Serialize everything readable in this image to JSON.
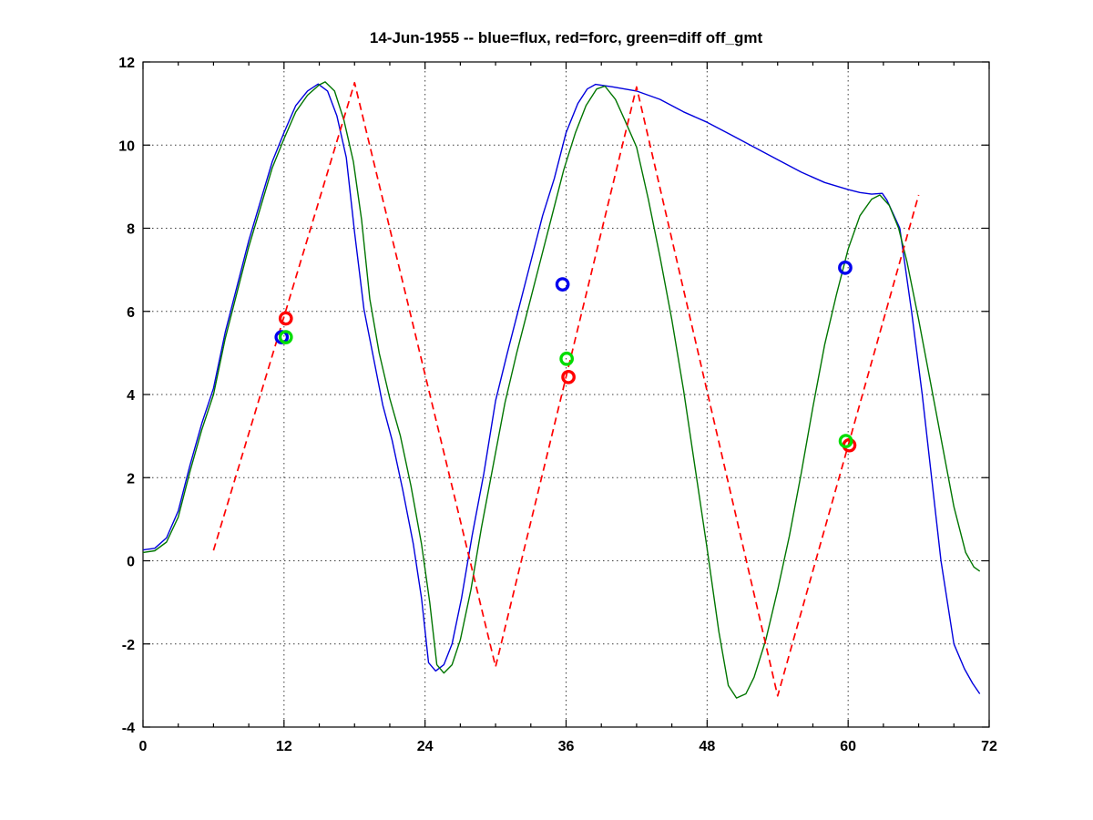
{
  "figure": {
    "background": "#ffffff",
    "frame_color": "#000000",
    "grid_color": "#3c3c3c"
  },
  "chart_data": {
    "type": "line",
    "title": "14-Jun-1955 -- blue=flux, red=forc, green=diff off_gmt",
    "xlabel": "",
    "ylabel": "",
    "xlim": [
      0,
      72
    ],
    "ylim": [
      -4,
      12
    ],
    "x_major_ticks": [
      0,
      12,
      24,
      36,
      48,
      60,
      72
    ],
    "x_minor_step": 3,
    "y_major_ticks": [
      -4,
      -2,
      0,
      2,
      4,
      6,
      8,
      10,
      12
    ],
    "grid": "dotted",
    "legend_in_title": {
      "blue": "flux",
      "red": "forc",
      "green": "diff"
    },
    "series": [
      {
        "name": "flux",
        "color": "#0000dd",
        "style": "solid",
        "width": 1.4,
        "points": [
          [
            0,
            0.26
          ],
          [
            1,
            0.3
          ],
          [
            2,
            0.55
          ],
          [
            3,
            1.2
          ],
          [
            4,
            2.3
          ],
          [
            5,
            3.3
          ],
          [
            6,
            4.15
          ],
          [
            7,
            5.5
          ],
          [
            8,
            6.6
          ],
          [
            9,
            7.7
          ],
          [
            10,
            8.65
          ],
          [
            11,
            9.6
          ],
          [
            12,
            10.3
          ],
          [
            13,
            10.95
          ],
          [
            14,
            11.3
          ],
          [
            14.9,
            11.47
          ],
          [
            15.7,
            11.3
          ],
          [
            16.5,
            10.7
          ],
          [
            17.3,
            9.7
          ],
          [
            18,
            7.9
          ],
          [
            18.8,
            6.05
          ],
          [
            19.6,
            4.9
          ],
          [
            20.4,
            3.75
          ],
          [
            21.2,
            2.9
          ],
          [
            22.1,
            1.7
          ],
          [
            23,
            0.4
          ],
          [
            23.7,
            -0.9
          ],
          [
            24.3,
            -2.45
          ],
          [
            24.9,
            -2.65
          ],
          [
            25.6,
            -2.5
          ],
          [
            26.3,
            -2.0
          ],
          [
            27.1,
            -0.9
          ],
          [
            28,
            0.6
          ],
          [
            29,
            2.1
          ],
          [
            30,
            3.85
          ],
          [
            31,
            5.0
          ],
          [
            32,
            6.1
          ],
          [
            33,
            7.2
          ],
          [
            34,
            8.3
          ],
          [
            35,
            9.2
          ],
          [
            36,
            10.3
          ],
          [
            37,
            11.0
          ],
          [
            37.8,
            11.35
          ],
          [
            38.5,
            11.46
          ],
          [
            40,
            11.4
          ],
          [
            42,
            11.3
          ],
          [
            44,
            11.1
          ],
          [
            46,
            10.8
          ],
          [
            48,
            10.55
          ],
          [
            50,
            10.25
          ],
          [
            52,
            9.95
          ],
          [
            54,
            9.65
          ],
          [
            56,
            9.35
          ],
          [
            58,
            9.1
          ],
          [
            60,
            8.93
          ],
          [
            61,
            8.86
          ],
          [
            62,
            8.82
          ],
          [
            62.9,
            8.84
          ],
          [
            63.3,
            8.68
          ],
          [
            64.4,
            8.0
          ],
          [
            65.4,
            6.0
          ],
          [
            66.3,
            4.0
          ],
          [
            67.1,
            2.0
          ],
          [
            67.9,
            0.0
          ],
          [
            69,
            -2.0
          ],
          [
            69.9,
            -2.6
          ],
          [
            70.6,
            -2.95
          ],
          [
            71.2,
            -3.2
          ]
        ]
      },
      {
        "name": "diff",
        "color": "#007500",
        "style": "solid",
        "width": 1.4,
        "points": [
          [
            0,
            0.2
          ],
          [
            1,
            0.24
          ],
          [
            2,
            0.45
          ],
          [
            3,
            1.05
          ],
          [
            4,
            2.15
          ],
          [
            5,
            3.15
          ],
          [
            6,
            4.0
          ],
          [
            7,
            5.35
          ],
          [
            8,
            6.45
          ],
          [
            9,
            7.55
          ],
          [
            10,
            8.5
          ],
          [
            11,
            9.45
          ],
          [
            12,
            10.15
          ],
          [
            13,
            10.8
          ],
          [
            14,
            11.2
          ],
          [
            15,
            11.45
          ],
          [
            15.5,
            11.52
          ],
          [
            16.3,
            11.3
          ],
          [
            17.1,
            10.6
          ],
          [
            17.9,
            9.6
          ],
          [
            18.6,
            8.2
          ],
          [
            19.3,
            6.3
          ],
          [
            20.1,
            5.0
          ],
          [
            21,
            3.9
          ],
          [
            21.9,
            3.0
          ],
          [
            22.8,
            1.8
          ],
          [
            23.7,
            0.4
          ],
          [
            24.4,
            -1.0
          ],
          [
            25,
            -2.5
          ],
          [
            25.6,
            -2.7
          ],
          [
            26.3,
            -2.5
          ],
          [
            27,
            -1.9
          ],
          [
            27.9,
            -0.7
          ],
          [
            28.8,
            0.8
          ],
          [
            29.8,
            2.3
          ],
          [
            30.8,
            3.8
          ],
          [
            31.8,
            5.0
          ],
          [
            32.8,
            6.1
          ],
          [
            33.8,
            7.2
          ],
          [
            34.8,
            8.3
          ],
          [
            35.8,
            9.4
          ],
          [
            36.8,
            10.3
          ],
          [
            37.7,
            10.95
          ],
          [
            38.6,
            11.35
          ],
          [
            39.3,
            11.42
          ],
          [
            40.2,
            11.1
          ],
          [
            41,
            10.6
          ],
          [
            42,
            9.95
          ],
          [
            43,
            8.7
          ],
          [
            44,
            7.3
          ],
          [
            45,
            5.8
          ],
          [
            46,
            4.1
          ],
          [
            47,
            2.2
          ],
          [
            48,
            0.3
          ],
          [
            49,
            -1.7
          ],
          [
            49.8,
            -3.0
          ],
          [
            50.5,
            -3.3
          ],
          [
            51.3,
            -3.2
          ],
          [
            52,
            -2.8
          ],
          [
            53,
            -1.9
          ],
          [
            54,
            -0.7
          ],
          [
            55,
            0.6
          ],
          [
            56,
            2.1
          ],
          [
            57,
            3.7
          ],
          [
            58,
            5.2
          ],
          [
            59,
            6.4
          ],
          [
            60,
            7.5
          ],
          [
            61,
            8.3
          ],
          [
            62,
            8.7
          ],
          [
            62.7,
            8.8
          ],
          [
            63.5,
            8.55
          ],
          [
            64.3,
            8.0
          ],
          [
            65,
            7.2
          ],
          [
            66,
            5.8
          ],
          [
            67,
            4.3
          ],
          [
            68,
            2.8
          ],
          [
            69,
            1.3
          ],
          [
            70,
            0.2
          ],
          [
            70.7,
            -0.15
          ],
          [
            71.2,
            -0.25
          ]
        ]
      },
      {
        "name": "forc",
        "color": "#ff0000",
        "style": "dashed",
        "width": 1.7,
        "points": [
          [
            6,
            0.25
          ],
          [
            18,
            11.5
          ],
          [
            30,
            -2.55
          ],
          [
            42,
            11.4
          ],
          [
            54,
            -3.25
          ],
          [
            66,
            8.8
          ]
        ]
      }
    ],
    "markers": [
      {
        "name": "flux-samples",
        "color": "#0000ee",
        "shape": "circle",
        "points": [
          [
            11.8,
            5.38
          ],
          [
            35.7,
            6.65
          ],
          [
            59.75,
            7.05
          ]
        ]
      },
      {
        "name": "forc-samples",
        "color": "#ff0000",
        "shape": "circle",
        "points": [
          [
            12.15,
            5.83
          ],
          [
            36.2,
            4.42
          ],
          [
            60.1,
            2.78
          ]
        ]
      },
      {
        "name": "diff-samples",
        "color": "#00dd00",
        "shape": "circle",
        "points": [
          [
            12.15,
            5.38
          ],
          [
            36.05,
            4.86
          ],
          [
            59.8,
            2.88
          ]
        ]
      }
    ]
  }
}
